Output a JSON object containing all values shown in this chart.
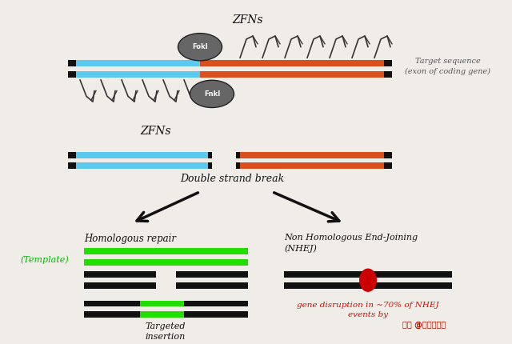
{
  "bg_color": "#f0ede8",
  "title_zfns_top": "ZFNs",
  "title_zfns_bottom": "ZFNs",
  "label_target_seq": "Target sequence\n(exon of coding gene)",
  "label_double_strand": "Double strand break",
  "label_homologous": "Homologous repair",
  "label_nhej": "Non Homologous End-Joining\n(NHEJ)",
  "label_template": "(Template)",
  "label_targeted": "Targeted\ninsertion",
  "label_gene_disruption": "gene disruption in ~70% of NHEJ\nevents by",
  "color_blue": "#5bc8f0",
  "color_orange": "#d94f1e",
  "color_green": "#22dd00",
  "color_red": "#cc0000",
  "color_black": "#111111",
  "color_gray": "#777777",
  "color_dark_gray": "#555555",
  "color_white": "#ffffff",
  "color_template_text": "#00bb00",
  "color_disruption_text": "#cc1100",
  "watermark": "头条 @来看世界呀"
}
